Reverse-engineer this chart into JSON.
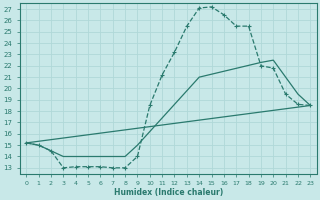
{
  "xlabel": "Humidex (Indice chaleur)",
  "xlim": [
    -0.5,
    23.5
  ],
  "ylim": [
    12.5,
    27.5
  ],
  "xticks": [
    0,
    1,
    2,
    3,
    4,
    5,
    6,
    7,
    8,
    9,
    10,
    11,
    12,
    13,
    14,
    15,
    16,
    17,
    18,
    19,
    20,
    21,
    22,
    23
  ],
  "yticks": [
    13,
    14,
    15,
    16,
    17,
    18,
    19,
    20,
    21,
    22,
    23,
    24,
    25,
    26,
    27
  ],
  "line_color": "#2a7a6e",
  "bg_color": "#c8e8e8",
  "grid_color": "#b0d8d8",
  "curve1_x": [
    0,
    1,
    2,
    3,
    4,
    5,
    6,
    7,
    8,
    9,
    10,
    11,
    12,
    13,
    14,
    15,
    16,
    17,
    18,
    19,
    20,
    21,
    22,
    23
  ],
  "curve1_y": [
    15.2,
    15.0,
    14.5,
    13.0,
    13.1,
    13.1,
    13.1,
    13.0,
    13.0,
    14.0,
    18.5,
    21.2,
    23.2,
    25.5,
    27.1,
    27.2,
    26.5,
    25.5,
    25.5,
    22.0,
    21.8,
    19.5,
    18.6,
    18.5
  ],
  "curve2_x": [
    0,
    1,
    2,
    3,
    8,
    9,
    14,
    19,
    20,
    21,
    22,
    23
  ],
  "curve2_y": [
    15.2,
    15.0,
    14.5,
    14.0,
    14.0,
    15.0,
    21.0,
    22.3,
    22.5,
    21.0,
    19.5,
    18.5
  ],
  "curve3_x": [
    0,
    23
  ],
  "curve3_y": [
    15.2,
    18.5
  ]
}
